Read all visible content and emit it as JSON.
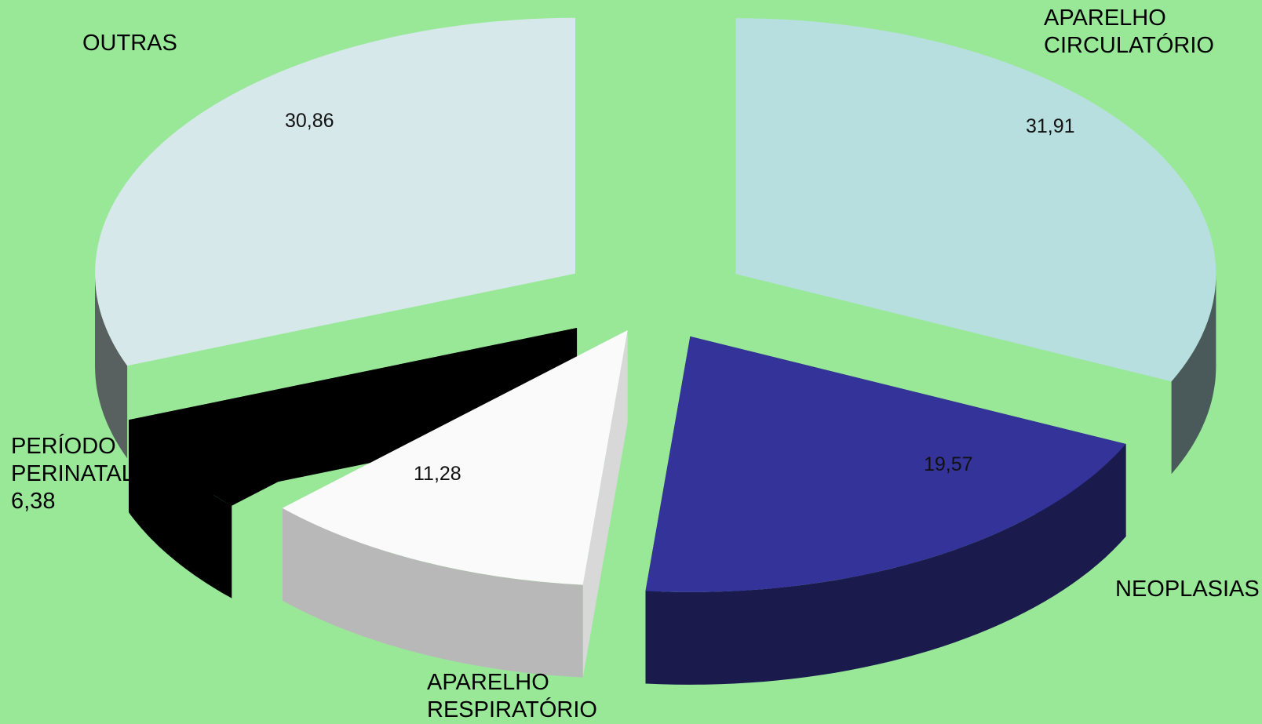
{
  "chart_data": {
    "type": "pie",
    "style": "3d-exploded",
    "title": "",
    "slices": [
      {
        "label_lines": [
          "APARELHO",
          "CIRCULATÓRIO"
        ],
        "value": 31.91,
        "value_text": "31,91",
        "top_color": "#b8dfe0",
        "side_color": "#4a5a5a",
        "outer_color": "#4a5a5a"
      },
      {
        "label_lines": [
          "NEOPLASIAS"
        ],
        "value": 19.57,
        "value_text": "19,57",
        "top_color": "#333399",
        "side_color": "#1a1a4d",
        "outer_color": "#1a1a4d"
      },
      {
        "label_lines": [
          "APARELHO",
          "RESPIRATÓRIO"
        ],
        "value": 11.28,
        "value_text": "11,28",
        "top_color": "#fafafa",
        "side_color": "#d8d8d8",
        "outer_color": "#b8b8b8"
      },
      {
        "label_lines": [
          "PERÍODO",
          "PERINATAL"
        ],
        "value": 6.38,
        "value_text": "6,38",
        "top_color": "#000000",
        "side_color": "#000000",
        "outer_color": "#000000"
      },
      {
        "label_lines": [
          "OUTRAS"
        ],
        "value": 30.86,
        "value_text": "30,86",
        "top_color": "#d6e8ea",
        "side_color": "#586060",
        "outer_color": "#586060"
      }
    ],
    "legend": "none",
    "background_color": "#98e898"
  }
}
